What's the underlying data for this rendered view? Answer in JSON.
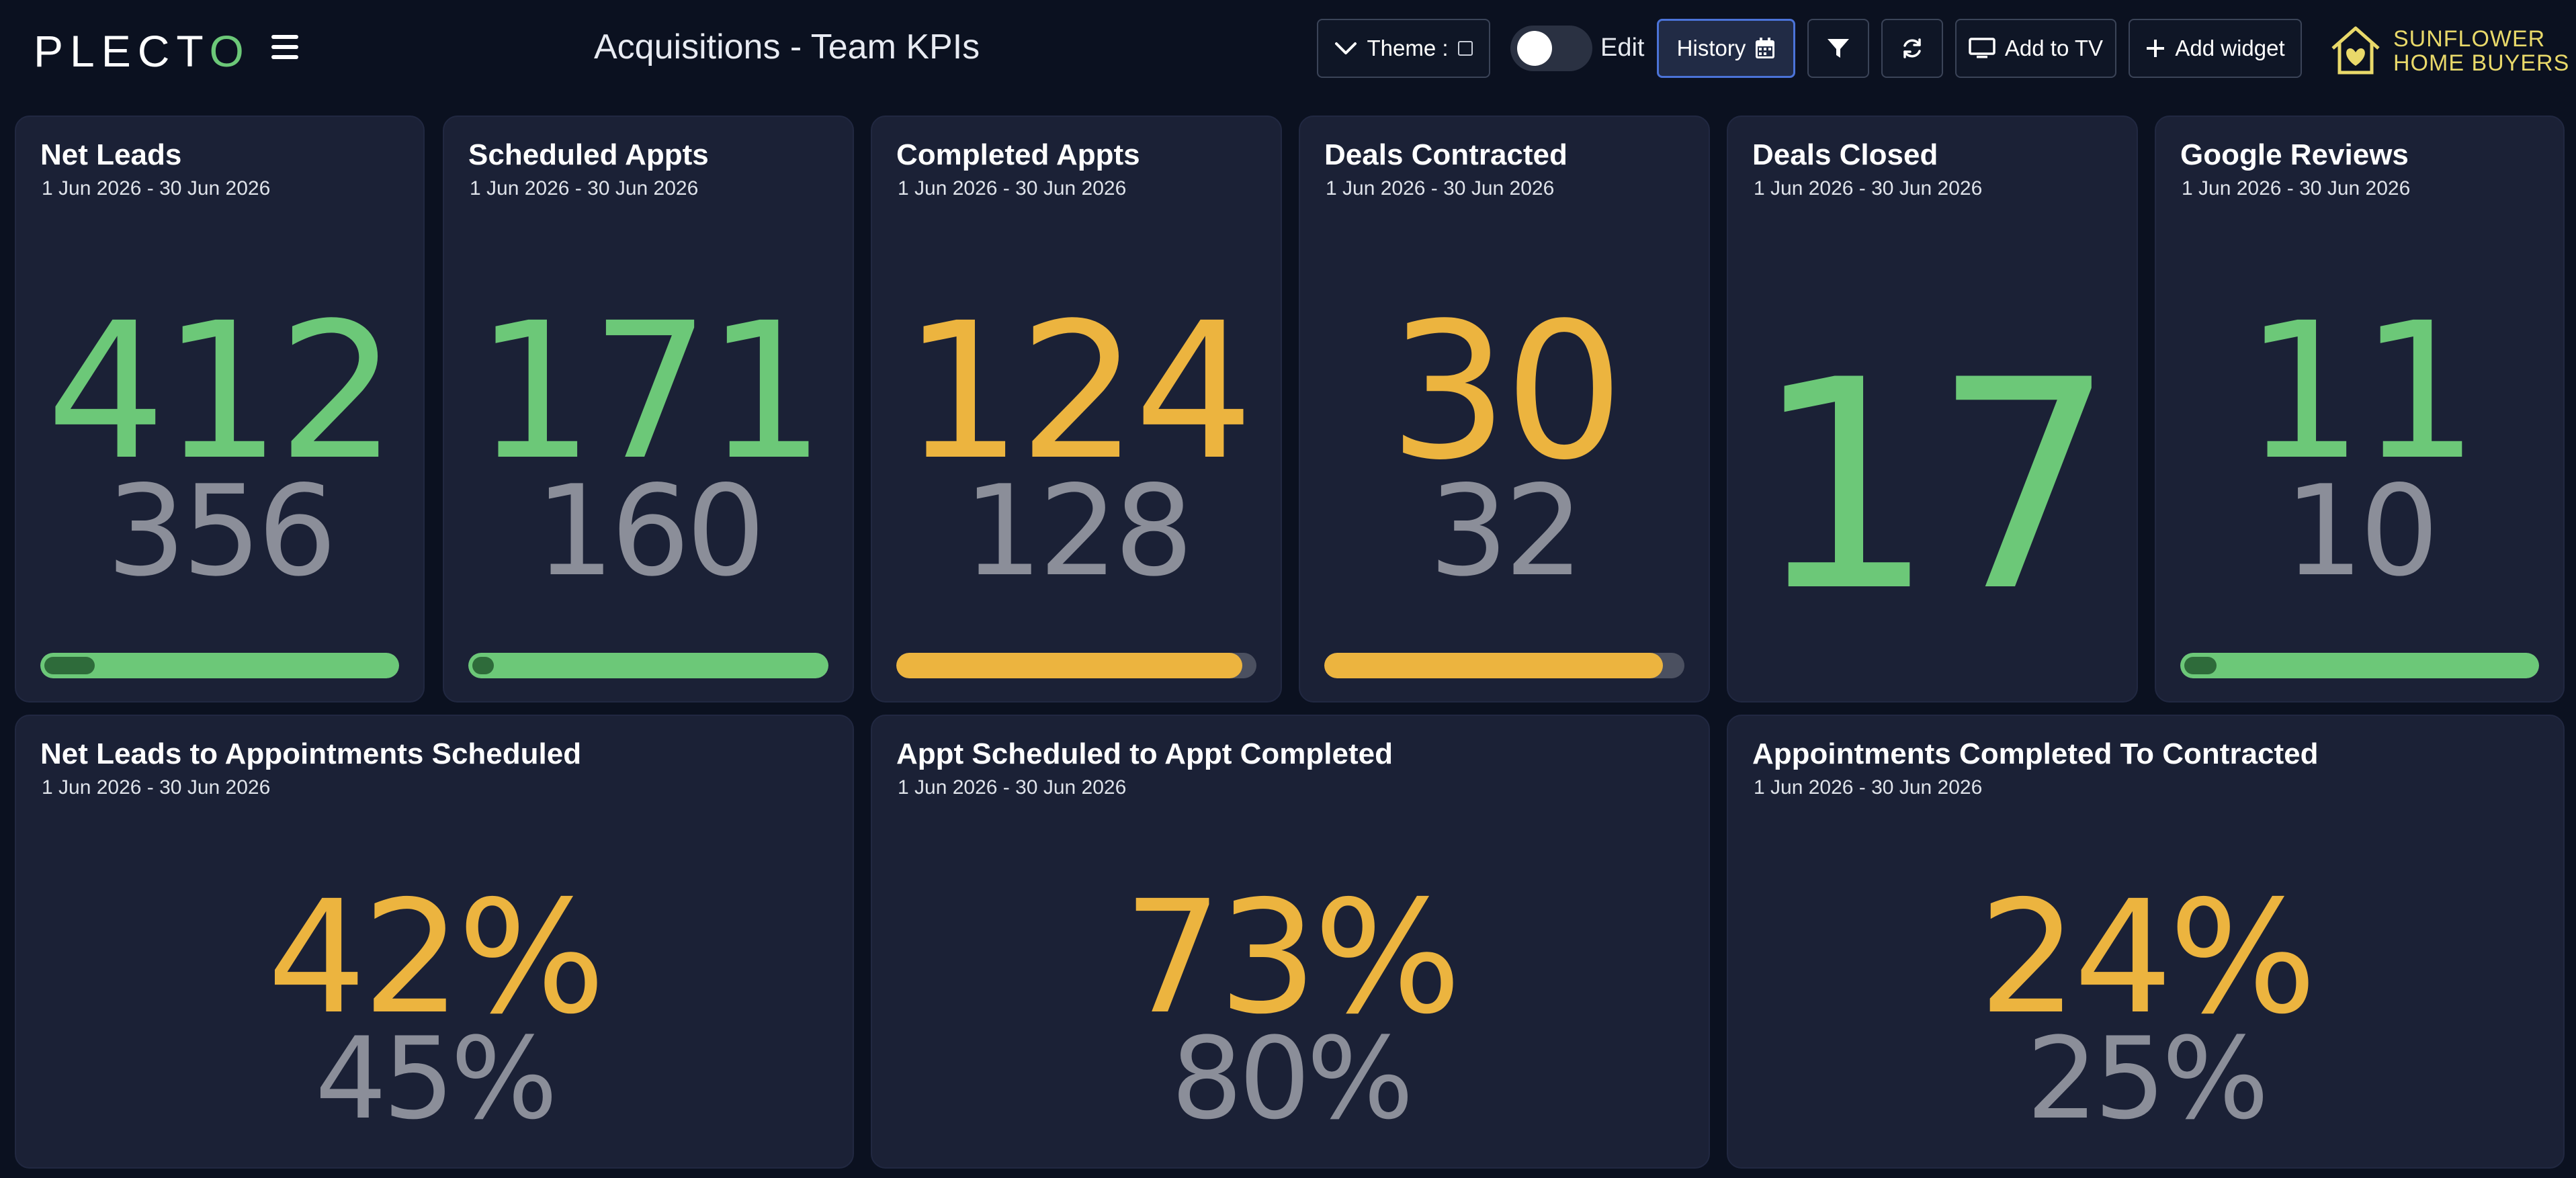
{
  "header": {
    "logo_text": "PLECT",
    "logo_accent": "O",
    "title": "Acquisitions - Team KPIs",
    "theme_label": "Theme :",
    "edit_label": "Edit",
    "history_label": "History",
    "add_to_tv_label": "Add to TV",
    "add_widget_label": "Add widget",
    "brand_line1": "SUNFLOWER",
    "brand_line2": "HOME BUYERS",
    "edit_mode_on": false
  },
  "colors": {
    "good": "#6cc878",
    "warning": "#ecb43f",
    "previous": "#8b8e99",
    "card_bg": "#1b2136",
    "page_bg": "#0b1120",
    "accent_blue": "#4b73d8"
  },
  "icons": {
    "menu": "hamburger-icon",
    "theme": "chevron-down-icon",
    "history": "calendar-icon",
    "filter": "filter-icon",
    "refresh": "refresh-icon",
    "tv": "monitor-icon",
    "add": "plus-icon",
    "brand": "house-heart-logo"
  },
  "widgets": [
    {
      "title": "Net Leads",
      "period": "1 Jun 2026 - 30 Jun 2026",
      "value": "412",
      "previous": "356",
      "status": "good",
      "bar_fill": 1.0,
      "bar_marker": 0.14
    },
    {
      "title": "Scheduled Appts",
      "period": "1 Jun 2026 - 30 Jun 2026",
      "value": "171",
      "previous": "160",
      "status": "good",
      "bar_fill": 1.0,
      "bar_marker": 0.06
    },
    {
      "title": "Completed Appts",
      "period": "1 Jun 2026 - 30 Jun 2026",
      "value": "124",
      "previous": "128",
      "status": "warning",
      "bar_fill": 0.96
    },
    {
      "title": "Deals Contracted",
      "period": "1 Jun 2026 - 30 Jun 2026",
      "value": "30",
      "previous": "32",
      "status": "warning",
      "bar_fill": 0.94
    },
    {
      "title": "Deals Closed",
      "period": "1 Jun 2026 - 30 Jun 2026",
      "value": "17",
      "status": "good"
    },
    {
      "title": "Google Reviews",
      "period": "1 Jun 2026 - 30 Jun 2026",
      "value": "11",
      "previous": "10",
      "status": "good",
      "bar_fill": 1.0,
      "bar_marker": 0.09
    }
  ],
  "ratio_widgets": [
    {
      "title": "Net Leads to Appointments Scheduled",
      "period": "1 Jun 2026 - 30 Jun 2026",
      "value": "42%",
      "previous": "45%",
      "status": "warning"
    },
    {
      "title": "Appt Scheduled to Appt Completed",
      "period": "1 Jun 2026 - 30 Jun 2026",
      "value": "73%",
      "previous": "80%",
      "status": "warning"
    },
    {
      "title": "Appointments Completed To Contracted",
      "period": "1 Jun 2026 - 30 Jun 2026",
      "value": "24%",
      "previous": "25%",
      "status": "warning"
    }
  ]
}
